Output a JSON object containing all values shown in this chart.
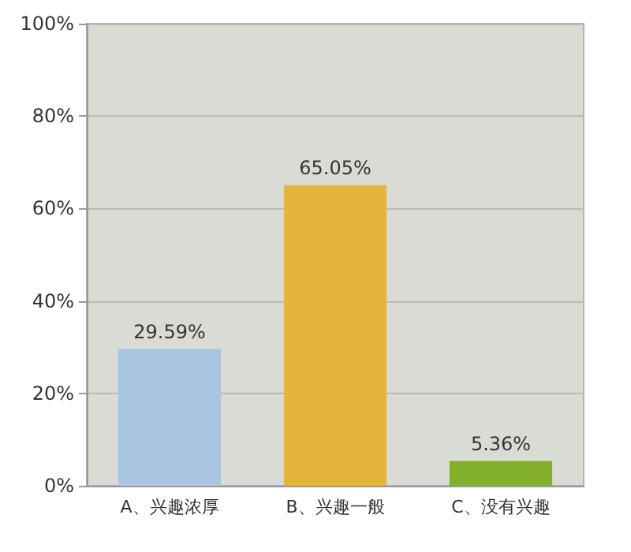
{
  "chart_data": {
    "type": "bar",
    "categories": [
      "A、兴趣浓厚",
      "B、兴趣一般",
      "C、没有兴趣"
    ],
    "values": [
      29.59,
      65.05,
      5.36
    ],
    "colors": [
      "#a9c6e3",
      "#e3b53a",
      "#82b02c"
    ],
    "value_labels": [
      "29.59%",
      "65.05%",
      "5.36%"
    ],
    "ylim": [
      0,
      100
    ],
    "yticks": [
      {
        "value": 0,
        "label": "0%"
      },
      {
        "value": 20,
        "label": "20%"
      },
      {
        "value": 40,
        "label": "40%"
      },
      {
        "value": 60,
        "label": "60%"
      },
      {
        "value": 80,
        "label": "80%"
      },
      {
        "value": 100,
        "label": "100%"
      }
    ],
    "grid": "y"
  }
}
